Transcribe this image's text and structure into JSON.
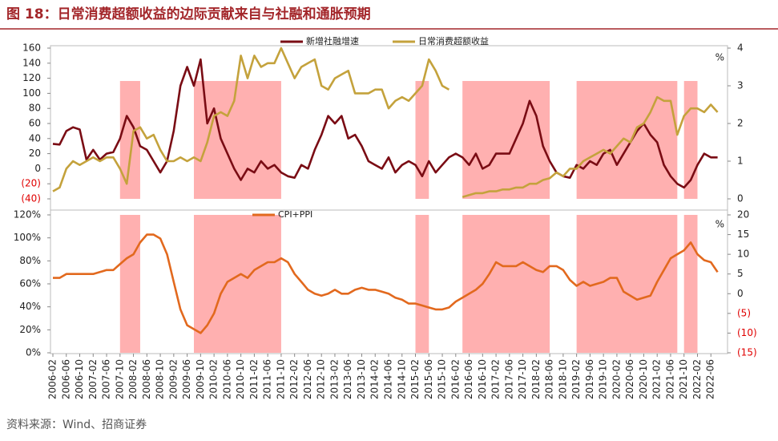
{
  "title": "图 18：日常消费超额收益的边际贡献来自与社融和通胀预期",
  "source": "资料来源：Wind、招商证券",
  "chart_data": [
    {
      "type": "line",
      "ylim": [
        -40,
        160
      ],
      "yticks": [
        {
          "value": -40,
          "label": "(40)"
        },
        {
          "value": -20,
          "label": "(20)"
        },
        0,
        20,
        40,
        60,
        80,
        100,
        120,
        140,
        160
      ],
      "y2lim": [
        0,
        4
      ],
      "y2ticks": [
        0,
        1,
        2,
        3,
        4
      ],
      "y2_unit": "%",
      "series": [
        {
          "name": "新增社融增速",
          "color": "#7a0c14",
          "values": [
            33,
            32,
            50,
            55,
            52,
            12,
            25,
            12,
            20,
            22,
            40,
            70,
            55,
            30,
            25,
            10,
            -5,
            10,
            50,
            110,
            135,
            110,
            145,
            60,
            80,
            40,
            20,
            0,
            -15,
            0,
            -5,
            10,
            0,
            5,
            -5,
            -10,
            -12,
            5,
            0,
            25,
            45,
            70,
            60,
            70,
            40,
            45,
            30,
            10,
            5,
            0,
            15,
            -5,
            5,
            10,
            5,
            -10,
            10,
            -5,
            5,
            15,
            20,
            15,
            5,
            20,
            0,
            5,
            20,
            20,
            20,
            40,
            60,
            90,
            70,
            30,
            10,
            -5,
            -10,
            -12,
            5,
            0,
            10,
            5,
            20,
            25,
            5,
            20,
            35,
            50,
            60,
            45,
            35,
            5,
            -10,
            -20,
            -25,
            -15,
            5,
            20,
            15,
            15
          ]
        },
        {
          "name": "日常消费超额收益",
          "color": "#c4a23c",
          "axis": "y2",
          "values": [
            0.2,
            0.3,
            0.8,
            1.0,
            0.9,
            1.0,
            1.1,
            1.0,
            1.1,
            1.1,
            0.8,
            0.4,
            1.8,
            1.9,
            1.6,
            1.7,
            1.3,
            1.0,
            1.0,
            1.1,
            1.0,
            1.1,
            1.0,
            1.5,
            2.2,
            2.3,
            2.2,
            2.6,
            3.8,
            3.2,
            3.8,
            3.5,
            3.6,
            3.6,
            4.0,
            3.6,
            3.2,
            3.5,
            3.6,
            3.7,
            3.0,
            2.9,
            3.2,
            3.3,
            3.4,
            2.8,
            2.8,
            2.8,
            2.9,
            2.9,
            2.4,
            2.6,
            2.7,
            2.6,
            2.8,
            3.0,
            3.7,
            3.4,
            3.0,
            2.9,
            null,
            0.05,
            0.1,
            0.15,
            0.15,
            0.2,
            0.2,
            0.25,
            0.25,
            0.3,
            0.3,
            0.4,
            0.4,
            0.5,
            0.55,
            0.7,
            0.6,
            0.8,
            0.8,
            1.0,
            1.1,
            1.2,
            1.3,
            1.2,
            1.4,
            1.6,
            1.5,
            1.9,
            2.0,
            2.3,
            2.7,
            2.6,
            2.6,
            1.7,
            2.2,
            2.4,
            2.4,
            2.3,
            2.5,
            2.3
          ]
        }
      ]
    },
    {
      "type": "line",
      "categories": [
        "2006-02",
        null,
        "2006-06",
        null,
        "2006-10",
        null,
        "2007-02",
        null,
        "2007-06",
        null,
        "2007-10",
        null,
        "2008-02",
        null,
        "2008-06",
        null,
        "2008-10",
        null,
        "2009-02",
        null,
        "2009-06",
        null,
        "2009-10",
        null,
        "2010-02",
        null,
        "2010-06",
        null,
        "2010-10",
        null,
        "2011-02",
        null,
        "2011-06",
        null,
        "2011-10",
        null,
        "2012-02",
        null,
        "2012-06",
        null,
        "2012-10",
        null,
        "2013-02",
        null,
        "2013-06",
        null,
        "2013-10",
        null,
        "2014-02",
        null,
        "2014-06",
        null,
        "2014-10",
        null,
        "2015-02",
        null,
        "2015-06",
        null,
        "2015-10",
        null,
        "2016-02",
        null,
        "2016-06",
        null,
        "2016-10",
        null,
        "2017-02",
        null,
        "2017-06",
        null,
        "2017-10",
        null,
        "2018-02",
        null,
        "2018-06",
        null,
        "2018-10",
        null,
        "2019-02",
        null,
        "2019-06",
        null,
        "2019-10",
        null,
        "2020-02",
        null,
        "2020-06",
        null,
        "2020-10",
        null,
        "2021-02",
        null,
        "2021-06",
        null,
        "2021-10",
        null,
        "2022-02",
        null,
        "2022-06",
        null
      ],
      "shaded_periods": [
        [
          10,
          13
        ],
        [
          21,
          34
        ],
        [
          54,
          56
        ],
        [
          61,
          74
        ],
        [
          78,
          93
        ],
        [
          94,
          96
        ]
      ],
      "ylim": [
        0,
        120
      ],
      "yticks": [
        {
          "value": 0,
          "label": "0%"
        },
        {
          "value": 20,
          "label": "20%"
        },
        {
          "value": 40,
          "label": "40%"
        },
        {
          "value": 60,
          "label": "60%"
        },
        {
          "value": 80,
          "label": "80%"
        },
        {
          "value": 100,
          "label": "100%"
        },
        {
          "value": 120,
          "label": "120%"
        }
      ],
      "y2lim": [
        -15,
        20
      ],
      "y2ticks": [
        {
          "value": -15,
          "label": "(15)"
        },
        {
          "value": -10,
          "label": "(10)"
        },
        {
          "value": -5,
          "label": "(5)"
        },
        0,
        5,
        10,
        15,
        20
      ],
      "y2_unit": "%",
      "series": [
        {
          "name": "CPI+PPI",
          "color": "#e2691e",
          "axis": "y2",
          "values": [
            4,
            4,
            5,
            5,
            5,
            5,
            5,
            5.5,
            6,
            6,
            7.5,
            9,
            10,
            13,
            15,
            15,
            14,
            10,
            3,
            -4,
            -8,
            -9,
            -10,
            -8,
            -5,
            0,
            3,
            4,
            5,
            4,
            6,
            7,
            8,
            8,
            9,
            8,
            5,
            3,
            1,
            0,
            -0.5,
            0,
            1,
            0,
            0,
            1,
            1.5,
            1,
            1,
            0.5,
            0,
            -1,
            -1.5,
            -2.5,
            -2.5,
            -3,
            -3.5,
            -4,
            -4,
            -3.5,
            -2,
            -1,
            0,
            1,
            2.5,
            5,
            8,
            7,
            7,
            7,
            8,
            7,
            6,
            5.5,
            7,
            7,
            6,
            3.5,
            2,
            3,
            2,
            2.5,
            3,
            4,
            4,
            0.5,
            -0.5,
            -1.5,
            -1,
            -0.5,
            3,
            6,
            9,
            10,
            11,
            13,
            10,
            8.5,
            8,
            5.5
          ]
        }
      ]
    }
  ]
}
